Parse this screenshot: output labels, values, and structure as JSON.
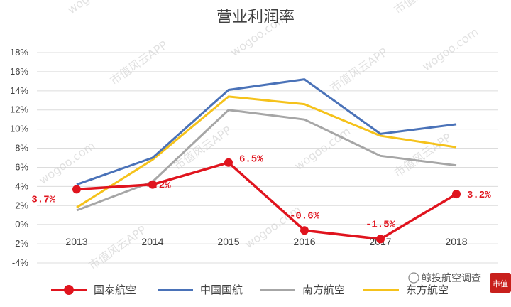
{
  "chart_data": {
    "type": "line",
    "title": "营业利润率",
    "xlabel": "",
    "ylabel": "",
    "categories": [
      "2013",
      "2014",
      "2015",
      "2016",
      "2017",
      "2018"
    ],
    "ylim": [
      -4,
      18
    ],
    "yticks": [
      "-4%",
      "-2%",
      "0%",
      "2%",
      "4%",
      "6%",
      "8%",
      "10%",
      "12%",
      "14%",
      "16%",
      "18%"
    ],
    "grid": true,
    "legend_position": "bottom",
    "series": [
      {
        "name": "国泰航空",
        "values": [
          3.7,
          4.2,
          6.5,
          -0.6,
          -1.5,
          3.2
        ],
        "labels": [
          "3.7%",
          "4.2%",
          "6.5%",
          "-0.6%",
          "-1.5%",
          "3.2%"
        ],
        "color": "#e0141e",
        "markers": true
      },
      {
        "name": "中国国航",
        "values": [
          4.2,
          7.0,
          14.1,
          15.2,
          9.5,
          10.5
        ],
        "color": "#4a72b8"
      },
      {
        "name": "南方航空",
        "values": [
          1.5,
          4.5,
          12.0,
          11.0,
          7.2,
          6.2
        ],
        "color": "#a6a6a6"
      },
      {
        "name": "东方航空",
        "values": [
          1.8,
          6.8,
          13.4,
          12.6,
          9.3,
          8.1
        ],
        "color": "#f5c21b"
      }
    ]
  },
  "watermark": {
    "text_site": "wogoo.com",
    "text_app": "市值风云APP"
  },
  "brand": {
    "text": "鲸投航空调查",
    "badge": "市值"
  }
}
